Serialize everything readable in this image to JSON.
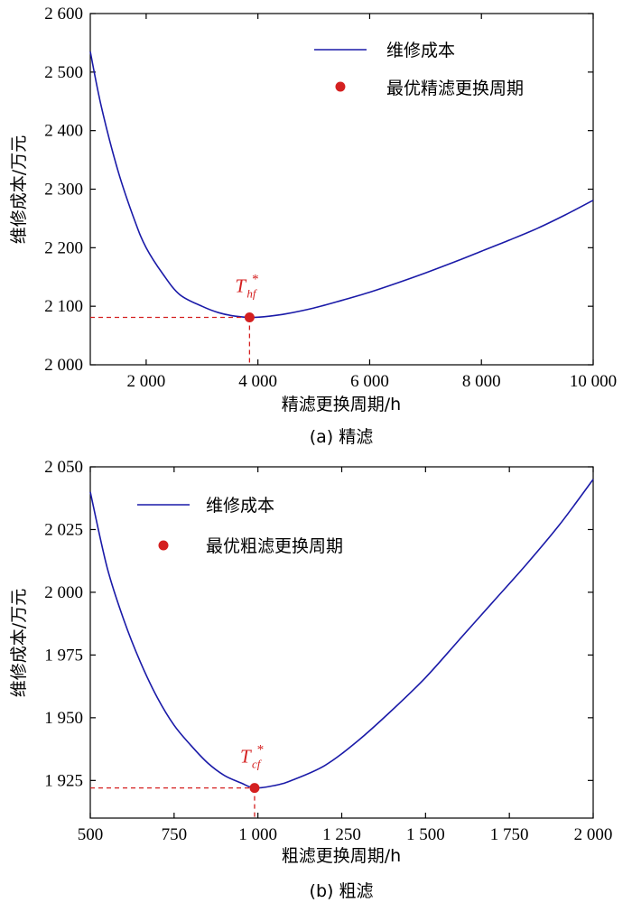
{
  "chart_data": [
    {
      "type": "line",
      "caption": "(a) 精滤",
      "xlabel": "精滤更换周期/h",
      "ylabel": "维修成本/万元",
      "xlim": [
        1000,
        10000
      ],
      "ylim": [
        2000,
        2600
      ],
      "xticks": [
        2000,
        4000,
        6000,
        8000,
        10000
      ],
      "xtick_labels": [
        "2 000",
        "4 000",
        "6 000",
        "8 000",
        "10 000"
      ],
      "yticks": [
        2000,
        2100,
        2200,
        2300,
        2400,
        2500,
        2600
      ],
      "ytick_labels": [
        "2 000",
        "2 100",
        "2 200",
        "2 300",
        "2 400",
        "2 500",
        "2 600"
      ],
      "legend_position": "top-right",
      "series": [
        {
          "name": "维修成本",
          "color": "#1a1aa8",
          "x": [
            1000,
            1200,
            1500,
            1800,
            2000,
            2300,
            2600,
            3000,
            3300,
            3600,
            3900,
            4200,
            4500,
            5000,
            5500,
            6000,
            6500,
            7000,
            7500,
            8000,
            8500,
            9000,
            9500,
            10000
          ],
          "y": [
            2535,
            2440,
            2330,
            2245,
            2200,
            2155,
            2120,
            2100,
            2089,
            2083,
            2081,
            2083,
            2087,
            2097,
            2110,
            2124,
            2140,
            2157,
            2175,
            2194,
            2213,
            2233,
            2256,
            2281
          ]
        }
      ],
      "optimum": {
        "name": "最优精滤更换周期",
        "label_main": "T",
        "label_sub": "hf",
        "label_sup": "*",
        "x": 3850,
        "y": 2081,
        "color": "#d42020"
      }
    },
    {
      "type": "line",
      "caption": "(b) 粗滤",
      "xlabel": "粗滤更换周期/h",
      "ylabel": "维修成本/万元",
      "xlim": [
        500,
        2000
      ],
      "ylim": [
        1910,
        2050
      ],
      "xticks": [
        500,
        750,
        1000,
        1250,
        1500,
        1750,
        2000
      ],
      "xtick_labels": [
        "500",
        "750",
        "1 000",
        "1 250",
        "1 500",
        "1 750",
        "2 000"
      ],
      "yticks": [
        1925,
        1950,
        1975,
        2000,
        2025,
        2050
      ],
      "ytick_labels": [
        "1 925",
        "1 950",
        "1 975",
        "2 000",
        "2 025",
        "2 050"
      ],
      "legend_position": "top-left",
      "series": [
        {
          "name": "维修成本",
          "color": "#1a1aa8",
          "x": [
            500,
            550,
            600,
            650,
            700,
            750,
            800,
            850,
            900,
            950,
            990,
            1050,
            1100,
            1200,
            1300,
            1400,
            1500,
            1600,
            1700,
            1800,
            1900,
            2000
          ],
          "y": [
            2040,
            2010,
            1989,
            1972,
            1958,
            1947,
            1939,
            1932,
            1927,
            1924,
            1922,
            1923,
            1925,
            1931,
            1941,
            1953,
            1966,
            1981,
            1996,
            2011,
            2027,
            2045
          ]
        }
      ],
      "optimum": {
        "name": "最优粗滤更换周期",
        "label_main": "T",
        "label_sub": "cf",
        "label_sup": "*",
        "x": 990,
        "y": 1922,
        "color": "#d42020"
      }
    }
  ]
}
